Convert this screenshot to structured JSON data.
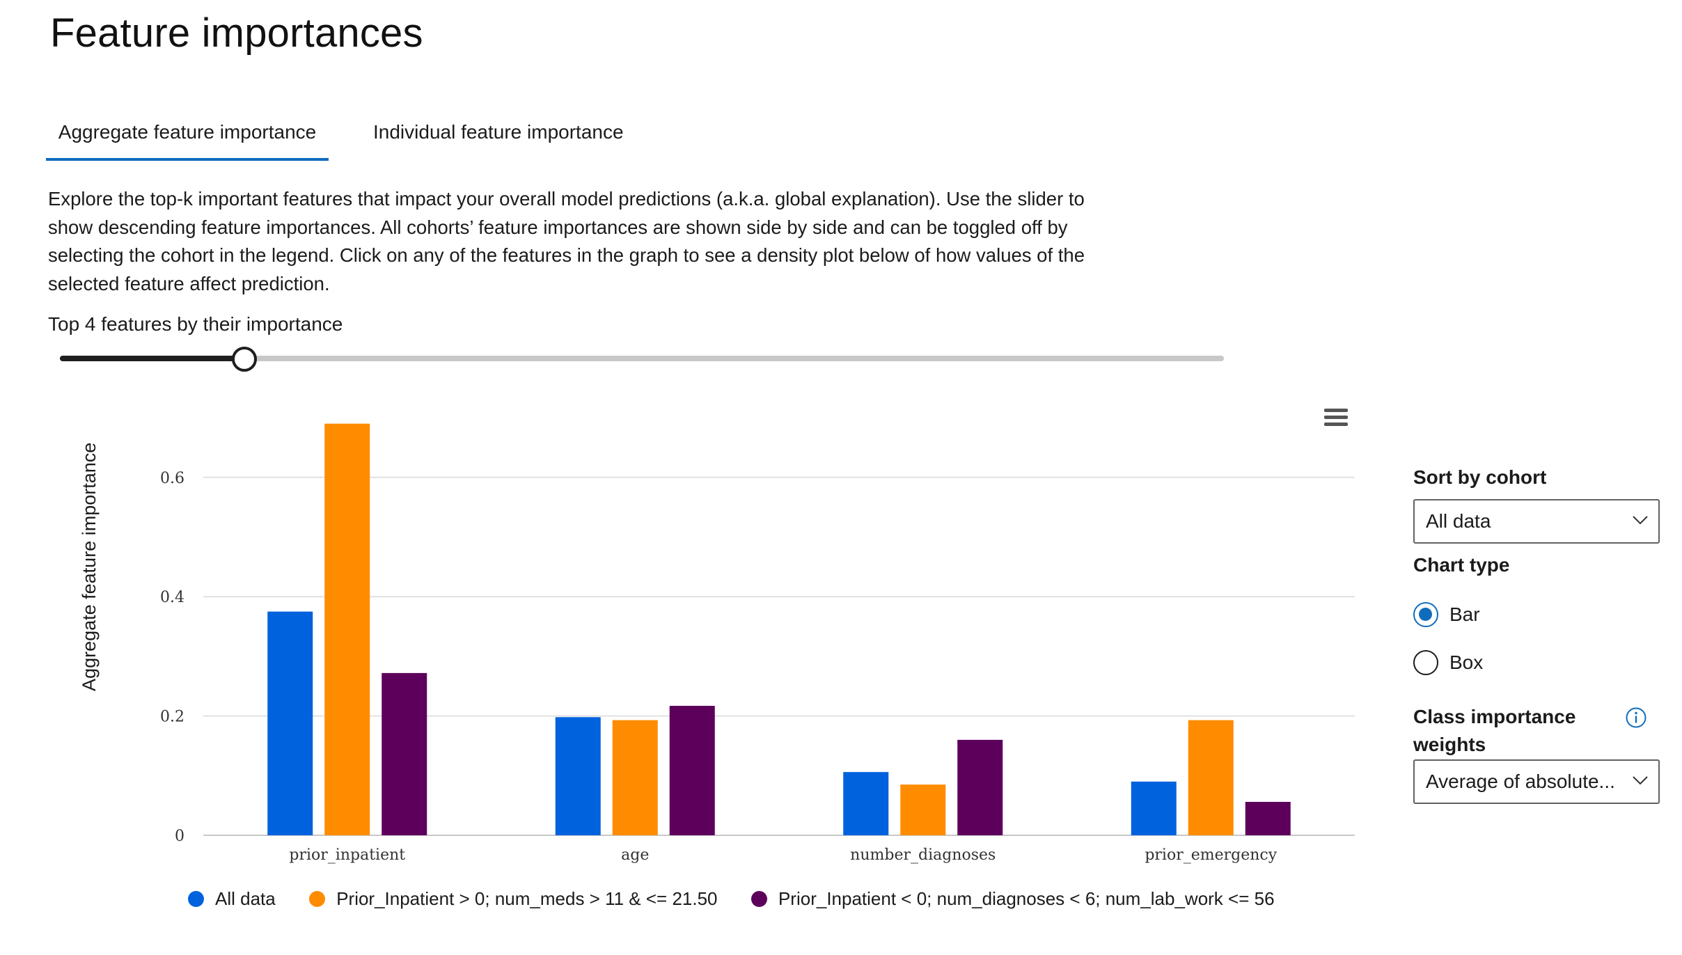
{
  "page": {
    "title": "Feature importances"
  },
  "tabs": [
    {
      "label": "Aggregate feature importance",
      "active": true
    },
    {
      "label": "Individual feature importance",
      "active": false
    }
  ],
  "description": "Explore the top-k important features that impact your overall model predictions (a.k.a. global explanation). Use the slider to show descending feature importances. All cohorts’ feature importances are shown side by side and can be toggled off by selecting the cohort in the legend. Click on any of the features in the graph to see a density plot below of how values of the selected feature affect prediction.",
  "slider": {
    "label": "Top 4 features by their importance",
    "value": 4
  },
  "chart_menu_icon": "hamburger-menu-icon",
  "colors": {
    "all_data": "#0062dd",
    "cohort_high": "#ff8c00",
    "cohort_low": "#5c005c",
    "grid": "#e1e1e1"
  },
  "chart_data": {
    "type": "bar",
    "title": "",
    "xlabel": "",
    "ylabel": "Aggregate feature importance",
    "categories": [
      "prior_inpatient",
      "age",
      "number_diagnoses",
      "prior_emergency"
    ],
    "series": [
      {
        "name": "All data",
        "values": [
          0.375,
          0.198,
          0.106,
          0.09
        ]
      },
      {
        "name": "Prior_Inpatient > 0; num_meds > 11 & <= 21.50",
        "values": [
          0.69,
          0.193,
          0.085,
          0.193
        ]
      },
      {
        "name": "Prior_Inpatient < 0; num_diagnoses < 6; num_lab_work <= 56",
        "values": [
          0.272,
          0.217,
          0.16,
          0.056
        ]
      }
    ],
    "yticks": [
      {
        "value": 0,
        "label": "0"
      },
      {
        "value": 0.2,
        "label": "0.2"
      },
      {
        "value": 0.4,
        "label": "0.4"
      },
      {
        "value": 0.6,
        "label": "0.6"
      }
    ],
    "ylim": [
      0,
      0.7
    ],
    "grid": true,
    "legend_position": "bottom"
  },
  "sidebar": {
    "sort_label": "Sort by cohort",
    "sort_value": "All data",
    "chart_type_label": "Chart type",
    "chart_type_options": [
      {
        "label": "Bar",
        "checked": true
      },
      {
        "label": "Box",
        "checked": false
      }
    ],
    "class_importance_label_line1": "Class importance",
    "class_importance_label_line2": "weights",
    "class_importance_value": "Average of absolute..."
  }
}
